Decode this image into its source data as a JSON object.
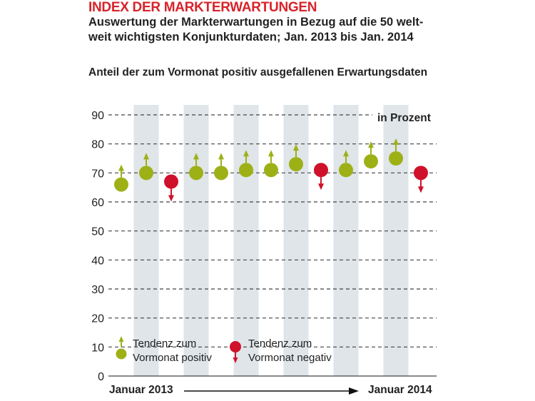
{
  "title": "INDEX DER MARKTERWARTUNGEN",
  "subtitle_line1": "Auswertung der Markterwartungen in Bezug auf die 50 welt-",
  "subtitle_line2": "weit wichtigsten Konjunkturdaten; Jan. 2013 bis Jan. 2014",
  "chart_subtitle": "Anteil der zum Vormonat positiv ausgefallenen Erwartungsdaten",
  "colors": {
    "title": "#d8232a",
    "positive": "#9db116",
    "negative": "#d0112b",
    "band": "#dfe5e9",
    "grid": "#444444",
    "text": "#222222"
  },
  "chart_data": {
    "type": "scatter",
    "unit_label": "in Prozent",
    "ylim": [
      0,
      90
    ],
    "yticks": [
      0,
      10,
      20,
      30,
      40,
      50,
      60,
      70,
      80,
      90
    ],
    "grid": true,
    "x_start_label": "Januar 2013",
    "x_end_label": "Januar 2014",
    "points": [
      {
        "index": 0,
        "value": 66,
        "tendency": "positive"
      },
      {
        "index": 1,
        "value": 70,
        "tendency": "positive"
      },
      {
        "index": 2,
        "value": 67,
        "tendency": "negative"
      },
      {
        "index": 3,
        "value": 70,
        "tendency": "positive"
      },
      {
        "index": 4,
        "value": 70,
        "tendency": "positive"
      },
      {
        "index": 5,
        "value": 71,
        "tendency": "positive"
      },
      {
        "index": 6,
        "value": 71,
        "tendency": "positive"
      },
      {
        "index": 7,
        "value": 73,
        "tendency": "positive"
      },
      {
        "index": 8,
        "value": 71,
        "tendency": "negative"
      },
      {
        "index": 9,
        "value": 71,
        "tendency": "positive"
      },
      {
        "index": 10,
        "value": 74,
        "tendency": "positive"
      },
      {
        "index": 11,
        "value": 75,
        "tendency": "positive"
      },
      {
        "index": 12,
        "value": 70,
        "tendency": "negative"
      }
    ],
    "legend": {
      "positive_line1": "Tendenz zum",
      "positive_line2": "Vormonat positiv",
      "negative_line1": "Tendenz zum",
      "negative_line2": "Vormonat negativ"
    }
  }
}
